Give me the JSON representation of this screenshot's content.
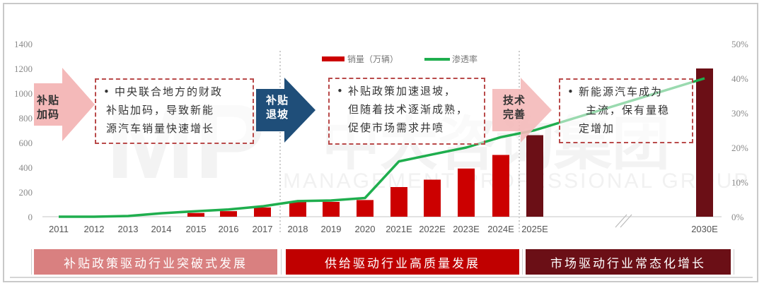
{
  "chart_data": {
    "type": "bar+line",
    "title": "",
    "categories": [
      "2011",
      "2012",
      "2013",
      "2014",
      "2015",
      "2016",
      "2017",
      "2018",
      "2019",
      "2020",
      "2021E",
      "2022E",
      "2023E",
      "2024E",
      "2025E",
      "2030E"
    ],
    "series": [
      {
        "name": "销量（万辆）",
        "type": "bar",
        "axis": "left",
        "values": [
          0,
          0,
          0,
          0,
          30,
          45,
          75,
          120,
          120,
          135,
          240,
          300,
          390,
          500,
          660,
          1200
        ]
      },
      {
        "name": "渗透率",
        "type": "line",
        "axis": "right",
        "unit": "%",
        "values": [
          0,
          0,
          0.2,
          1,
          1.6,
          2.1,
          3,
          4.5,
          4.7,
          5.4,
          16,
          18,
          20,
          23,
          25,
          40
        ]
      }
    ],
    "left_axis": {
      "ticks": [
        "0",
        "200",
        "400",
        "600",
        "800",
        "1000",
        "1200",
        "1400"
      ],
      "ylim": [
        0,
        1400
      ]
    },
    "right_axis": {
      "ticks": [
        "0%",
        "10%",
        "20%",
        "30%",
        "40%",
        "50%"
      ],
      "ylim": [
        0,
        50
      ]
    },
    "colors": {
      "bar_historical": "#cc0000",
      "bar_forecast_late": "#6b0f16",
      "line": "#1fae4e"
    },
    "legend_position": "top-center",
    "axis_break": "between 2025E and 2030E",
    "grid": false
  },
  "legend": {
    "bar": "销量（万辆）",
    "line": "渗透率"
  },
  "watermark": {
    "logo": "MP",
    "cn": "中大咨询集团",
    "en": "MANAGEMENT PROFESSIONAL GROUP"
  },
  "arrows": [
    {
      "label_line1": "补贴",
      "label_line2": "加码",
      "color": "#f4b9b9"
    },
    {
      "label_line1": "补贴",
      "label_line2": "退坡",
      "color": "#1f4e79"
    },
    {
      "label_line1": "技术",
      "label_line2": "完善",
      "color": "#f4b9b9"
    }
  ],
  "notes": [
    {
      "bullet": "•",
      "lines": [
        "中央联合地方的财政",
        "补贴加码，导致新能",
        "源汽车销量快速增长"
      ]
    },
    {
      "bullet": "•",
      "lines": [
        "补贴政策加速退坡，",
        "但随着技术逐渐成熟，",
        "促使市场需求井喷"
      ]
    },
    {
      "bullet": "•",
      "lines": [
        "新能源汽车成为",
        "主流，保有量稳",
        "定增加"
      ]
    }
  ],
  "phases": [
    {
      "label": "补贴政策驱动行业突破式发展",
      "bg": "#d98080",
      "fg": "#ffffff"
    },
    {
      "label": "供给驱动行业高质量发展",
      "bg": "#c00000",
      "fg": "#ffffff"
    },
    {
      "label": "市场驱动行业常态化增长",
      "bg": "#6b0f16",
      "fg": "#ffffff"
    }
  ]
}
